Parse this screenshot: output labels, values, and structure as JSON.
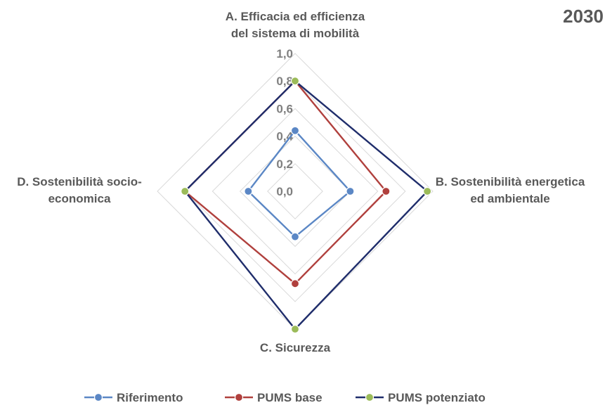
{
  "chart_data": {
    "type": "radar",
    "corner_title": "2030",
    "axes": [
      {
        "label_lines": [
          "A. Efficacia ed efficienza",
          "del sistema di mobilità"
        ]
      },
      {
        "label_lines": [
          "B. Sostenibilità energetica",
          "ed ambientale"
        ]
      },
      {
        "label_lines": [
          "C. Sicurezza"
        ]
      },
      {
        "label_lines": [
          "D. Sostenibilità socio-",
          "economica"
        ]
      }
    ],
    "r_ticks": [
      "0,0",
      "0,2",
      "0,4",
      "0,6",
      "0,8",
      "1,0"
    ],
    "r_range": [
      0,
      1
    ],
    "grid": true,
    "legend_position": "bottom",
    "series": [
      {
        "name": "Riferimento",
        "values": [
          0.44,
          0.4,
          0.33,
          0.34
        ],
        "line_color": "#5b87c5",
        "marker_color": "#5b87c5"
      },
      {
        "name": "PUMS base",
        "values": [
          0.8,
          0.66,
          0.67,
          0.8
        ],
        "line_color": "#b0403d",
        "marker_color": "#b0403d"
      },
      {
        "name": "PUMS potenziato",
        "values": [
          0.8,
          0.96,
          1.0,
          0.8
        ],
        "line_color": "#1f2d6b",
        "marker_color": "#9bbb59"
      }
    ],
    "colors": {
      "grid": "#d9d9d9",
      "text": "#595959",
      "marker_stroke": "#ffffff"
    }
  }
}
